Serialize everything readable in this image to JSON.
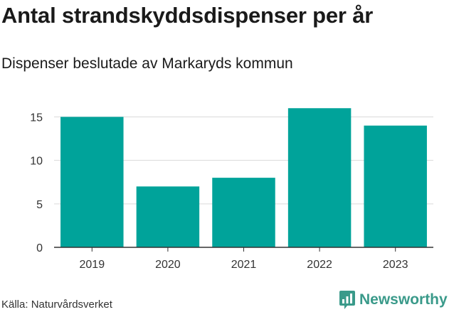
{
  "title": "Antal strandskyddsdispenser per år",
  "subtitle": "Dispenser beslutade av Markaryds kommun",
  "source": "Källa: Naturvårdsverket",
  "brand": {
    "name": "Newsworthy",
    "icon": "newsworthy-logo-icon",
    "color": "#3a9a8a"
  },
  "chart_data": {
    "type": "bar",
    "categories": [
      "2019",
      "2020",
      "2021",
      "2022",
      "2023"
    ],
    "values": [
      15,
      7,
      8,
      16,
      14
    ],
    "ylim": [
      0,
      17
    ],
    "yticks": [
      0,
      5,
      10,
      15
    ],
    "grid": true,
    "bar_color": "#00a39a",
    "xlabel": "",
    "ylabel": ""
  }
}
